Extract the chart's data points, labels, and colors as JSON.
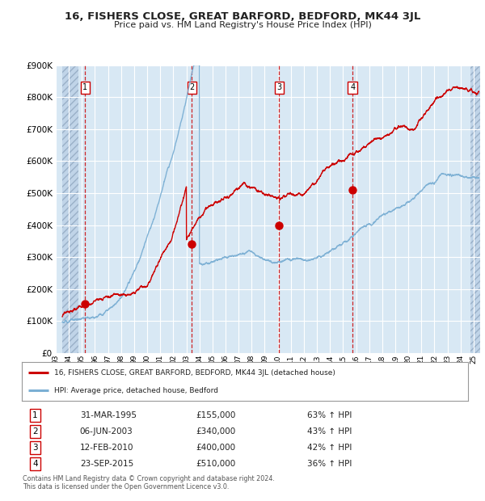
{
  "title": "16, FISHERS CLOSE, GREAT BARFORD, BEDFORD, MK44 3JL",
  "subtitle": "Price paid vs. HM Land Registry's House Price Index (HPI)",
  "legend_line1": "16, FISHERS CLOSE, GREAT BARFORD, BEDFORD, MK44 3JL (detached house)",
  "legend_line2": "HPI: Average price, detached house, Bedford",
  "transactions": [
    {
      "num": 1,
      "date": "31-MAR-1995",
      "price": 155000,
      "year": 1995.25,
      "hpi_pct": "63% ↑ HPI"
    },
    {
      "num": 2,
      "date": "06-JUN-2003",
      "price": 340000,
      "year": 2003.43,
      "hpi_pct": "43% ↑ HPI"
    },
    {
      "num": 3,
      "date": "12-FEB-2010",
      "price": 400000,
      "year": 2010.11,
      "hpi_pct": "42% ↑ HPI"
    },
    {
      "num": 4,
      "date": "23-SEP-2015",
      "price": 510000,
      "year": 2015.73,
      "hpi_pct": "36% ↑ HPI"
    }
  ],
  "red_line_color": "#cc0000",
  "blue_line_color": "#7bafd4",
  "dashed_line_color": "#cc0000",
  "background_color": "#d8e8f4",
  "ylim": [
    0,
    900000
  ],
  "xlim_start": 1993.5,
  "xlim_end": 2025.5,
  "footer": "Contains HM Land Registry data © Crown copyright and database right 2024.\nThis data is licensed under the Open Government Licence v3.0."
}
